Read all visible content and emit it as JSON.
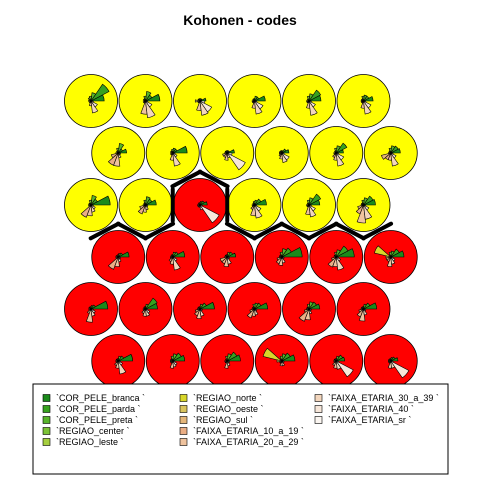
{
  "chart_data": {
    "type": "som-codes",
    "title": "Kohonen - codes",
    "grid": {
      "rows": 6,
      "cols": 6,
      "topology": "hexagonal"
    },
    "variables": [
      {
        "name": "`COR_PELE_branca `",
        "color": "#1b8a1b"
      },
      {
        "name": "`COR_PELE_parda `",
        "color": "#37a21f"
      },
      {
        "name": "`COR_PELE_preta `",
        "color": "#58b52b"
      },
      {
        "name": "`REGIAO_center `",
        "color": "#7cc337"
      },
      {
        "name": "`REGIAO_leste `",
        "color": "#a6cf3f"
      },
      {
        "name": "`REGIAO_norte `",
        "color": "#d8d62a"
      },
      {
        "name": "`REGIAO_oeste `",
        "color": "#d9c45e"
      },
      {
        "name": "`REGIAO_sul `",
        "color": "#e4b67a"
      },
      {
        "name": "`FAIXA_ETARIA_10_a_19 `",
        "color": "#eaae85"
      },
      {
        "name": "`FAIXA_ETARIA_20_a_29 `",
        "color": "#efc39e"
      },
      {
        "name": "`FAIXA_ETARIA_30_a_39 `",
        "color": "#f3d6bd"
      },
      {
        "name": "`FAIXA_ETARIA_40 `",
        "color": "#f7e7da"
      },
      {
        "name": "`FAIXA_ETARIA_sr `",
        "color": "#fbf6f1"
      }
    ],
    "cluster_colors": {
      "A": "#ffff00",
      "B": "#ff0000"
    },
    "units": [
      {
        "row": 1,
        "col": 1,
        "cluster": "A",
        "values": [
          0.55,
          0.85,
          0.35,
          0.2,
          0.15,
          0.1,
          0.1,
          0.05,
          0.1,
          0.2,
          0.5,
          0.3,
          0.1
        ]
      },
      {
        "row": 1,
        "col": 2,
        "cluster": "A",
        "values": [
          0.6,
          0.3,
          0.4,
          0.2,
          0.1,
          0.1,
          0.05,
          0.1,
          0.1,
          0.55,
          0.7,
          0.3,
          0.1
        ]
      },
      {
        "row": 1,
        "col": 3,
        "cluster": "A",
        "values": [
          0.25,
          0.1,
          0.1,
          0.1,
          0.1,
          0.1,
          0.2,
          0.1,
          0.1,
          0.4,
          0.6,
          0.55,
          0.2
        ]
      },
      {
        "row": 1,
        "col": 4,
        "cluster": "A",
        "values": [
          0.45,
          0.2,
          0.2,
          0.1,
          0.1,
          0.05,
          0.1,
          0.1,
          0.1,
          0.3,
          0.55,
          0.4,
          0.1
        ]
      },
      {
        "row": 1,
        "col": 5,
        "cluster": "A",
        "values": [
          0.5,
          0.55,
          0.3,
          0.2,
          0.1,
          0.05,
          0.1,
          0.1,
          0.1,
          0.3,
          0.6,
          0.3,
          0.1
        ]
      },
      {
        "row": 1,
        "col": 6,
        "cluster": "A",
        "values": [
          0.4,
          0.25,
          0.25,
          0.2,
          0.1,
          0.1,
          0.1,
          0.1,
          0.1,
          0.3,
          0.55,
          0.35,
          0.1
        ]
      },
      {
        "row": 2,
        "col": 1,
        "cluster": "A",
        "values": [
          0.35,
          0.2,
          0.4,
          0.2,
          0.1,
          0.05,
          0.1,
          0.3,
          0.55,
          0.55,
          0.2,
          0.1,
          0.1
        ]
      },
      {
        "row": 2,
        "col": 2,
        "cluster": "A",
        "values": [
          0.6,
          0.2,
          0.2,
          0.15,
          0.1,
          0.1,
          0.05,
          0.1,
          0.1,
          0.3,
          0.55,
          0.2,
          0.1
        ]
      },
      {
        "row": 2,
        "col": 3,
        "cluster": "A",
        "values": [
          0.3,
          0.1,
          0.1,
          0.1,
          0.1,
          0.1,
          0.1,
          0.2,
          0.2,
          0.3,
          0.2,
          0.85,
          0.2
        ]
      },
      {
        "row": 2,
        "col": 4,
        "cluster": "A",
        "values": [
          0.3,
          0.2,
          0.1,
          0.1,
          0.1,
          0.1,
          0.1,
          0.1,
          0.15,
          0.25,
          0.4,
          0.35,
          0.1
        ]
      },
      {
        "row": 2,
        "col": 5,
        "cluster": "A",
        "values": [
          0.3,
          0.5,
          0.3,
          0.2,
          0.1,
          0.05,
          0.1,
          0.1,
          0.2,
          0.3,
          0.55,
          0.35,
          0.1
        ]
      },
      {
        "row": 2,
        "col": 6,
        "cluster": "A",
        "values": [
          0.4,
          0.35,
          0.3,
          0.2,
          0.1,
          0.05,
          0.1,
          0.4,
          0.3,
          0.3,
          0.55,
          0.25,
          0.1
        ]
      },
      {
        "row": 3,
        "col": 1,
        "cluster": "A",
        "values": [
          0.8,
          0.3,
          0.4,
          0.2,
          0.1,
          0.1,
          0.1,
          0.1,
          0.55,
          0.45,
          0.3,
          0.2,
          0.1
        ]
      },
      {
        "row": 3,
        "col": 2,
        "cluster": "A",
        "values": [
          0.45,
          0.3,
          0.35,
          0.2,
          0.1,
          0.05,
          0.1,
          0.25,
          0.4,
          0.3,
          0.2,
          0.1,
          0.1
        ]
      },
      {
        "row": 3,
        "col": 3,
        "cluster": "B",
        "values": [
          0.3,
          0.2,
          0.15,
          0.1,
          0.1,
          0.05,
          0.1,
          0.1,
          0.1,
          0.1,
          0.2,
          0.9,
          0.1
        ]
      },
      {
        "row": 3,
        "col": 4,
        "cluster": "A",
        "values": [
          0.5,
          0.3,
          0.2,
          0.15,
          0.1,
          0.05,
          0.1,
          0.1,
          0.2,
          0.45,
          0.55,
          0.3,
          0.1
        ]
      },
      {
        "row": 3,
        "col": 5,
        "cluster": "A",
        "values": [
          0.45,
          0.55,
          0.3,
          0.2,
          0.1,
          0.05,
          0.1,
          0.1,
          0.1,
          0.4,
          0.5,
          0.3,
          0.1
        ]
      },
      {
        "row": 3,
        "col": 6,
        "cluster": "A",
        "values": [
          0.5,
          0.45,
          0.3,
          0.2,
          0.1,
          0.1,
          0.1,
          0.25,
          0.4,
          0.75,
          0.6,
          0.25,
          0.1
        ]
      },
      {
        "row": 4,
        "col": 1,
        "cluster": "B",
        "values": [
          0.45,
          0.2,
          0.15,
          0.1,
          0.05,
          0.1,
          0.1,
          0.1,
          0.55,
          0.4,
          0.2,
          0.1,
          0.1
        ]
      },
      {
        "row": 4,
        "col": 2,
        "cluster": "B",
        "values": [
          0.5,
          0.25,
          0.2,
          0.1,
          0.1,
          0.05,
          0.1,
          0.1,
          0.2,
          0.3,
          0.55,
          0.2,
          0.1
        ]
      },
      {
        "row": 4,
        "col": 3,
        "cluster": "B",
        "values": [
          0.35,
          0.25,
          0.2,
          0.1,
          0.1,
          0.1,
          0.1,
          0.3,
          0.3,
          0.4,
          0.3,
          0.1,
          0.1
        ]
      },
      {
        "row": 4,
        "col": 4,
        "cluster": "B",
        "values": [
          0.85,
          0.45,
          0.35,
          0.2,
          0.1,
          0.1,
          0.1,
          0.2,
          0.3,
          0.35,
          0.25,
          0.1,
          0.1
        ]
      },
      {
        "row": 4,
        "col": 5,
        "cluster": "B",
        "values": [
          0.75,
          0.55,
          0.3,
          0.2,
          0.1,
          0.1,
          0.05,
          0.2,
          0.45,
          0.4,
          0.55,
          0.2,
          0.1
        ]
      },
      {
        "row": 4,
        "col": 6,
        "cluster": "B",
        "values": [
          0.55,
          0.4,
          0.25,
          0.2,
          0.1,
          0.7,
          0.2,
          0.2,
          0.2,
          0.4,
          0.3,
          0.2,
          0.1
        ]
      },
      {
        "row": 5,
        "col": 1,
        "cluster": "B",
        "values": [
          0.7,
          0.2,
          0.15,
          0.1,
          0.1,
          0.1,
          0.05,
          0.1,
          0.2,
          0.55,
          0.3,
          0.2,
          0.1
        ]
      },
      {
        "row": 5,
        "col": 2,
        "cluster": "B",
        "values": [
          0.5,
          0.55,
          0.2,
          0.1,
          0.1,
          0.05,
          0.1,
          0.1,
          0.2,
          0.3,
          0.3,
          0.2,
          0.1
        ]
      },
      {
        "row": 5,
        "col": 3,
        "cluster": "B",
        "values": [
          0.6,
          0.3,
          0.2,
          0.1,
          0.1,
          0.1,
          0.1,
          0.2,
          0.3,
          0.4,
          0.3,
          0.1,
          0.1
        ]
      },
      {
        "row": 5,
        "col": 4,
        "cluster": "B",
        "values": [
          0.55,
          0.3,
          0.25,
          0.2,
          0.1,
          0.1,
          0.1,
          0.2,
          0.4,
          0.3,
          0.25,
          0.1,
          0.1
        ]
      },
      {
        "row": 5,
        "col": 5,
        "cluster": "B",
        "values": [
          0.45,
          0.35,
          0.3,
          0.2,
          0.1,
          0.1,
          0.1,
          0.2,
          0.55,
          0.45,
          0.2,
          0.1,
          0.1
        ]
      },
      {
        "row": 5,
        "col": 6,
        "cluster": "B",
        "values": [
          0.55,
          0.3,
          0.2,
          0.1,
          0.1,
          0.1,
          0.1,
          0.2,
          0.35,
          0.5,
          0.25,
          0.1,
          0.1
        ]
      },
      {
        "row": 6,
        "col": 1,
        "cluster": "B",
        "values": [
          0.6,
          0.25,
          0.2,
          0.1,
          0.1,
          0.1,
          0.1,
          0.1,
          0.2,
          0.3,
          0.55,
          0.2,
          0.1
        ]
      },
      {
        "row": 6,
        "col": 2,
        "cluster": "B",
        "values": [
          0.5,
          0.4,
          0.3,
          0.2,
          0.1,
          0.1,
          0.1,
          0.1,
          0.1,
          0.3,
          0.25,
          0.2,
          0.1
        ]
      },
      {
        "row": 6,
        "col": 3,
        "cluster": "B",
        "values": [
          0.55,
          0.45,
          0.3,
          0.2,
          0.1,
          0.05,
          0.1,
          0.1,
          0.1,
          0.3,
          0.2,
          0.1,
          0.1
        ]
      },
      {
        "row": 6,
        "col": 4,
        "cluster": "B",
        "values": [
          0.55,
          0.4,
          0.3,
          0.2,
          0.1,
          0.8,
          0.2,
          0.1,
          0.1,
          0.2,
          0.2,
          0.1,
          0.1
        ]
      },
      {
        "row": 6,
        "col": 5,
        "cluster": "B",
        "values": [
          0.35,
          0.3,
          0.2,
          0.1,
          0.1,
          0.1,
          0.1,
          0.1,
          0.2,
          0.3,
          0.35,
          0.8,
          0.1
        ]
      },
      {
        "row": 6,
        "col": 6,
        "cluster": "B",
        "values": [
          0.3,
          0.2,
          0.15,
          0.1,
          0.1,
          0.1,
          0.1,
          0.1,
          0.1,
          0.3,
          0.3,
          0.85,
          0.1
        ]
      }
    ],
    "legend_position": "bottom"
  }
}
